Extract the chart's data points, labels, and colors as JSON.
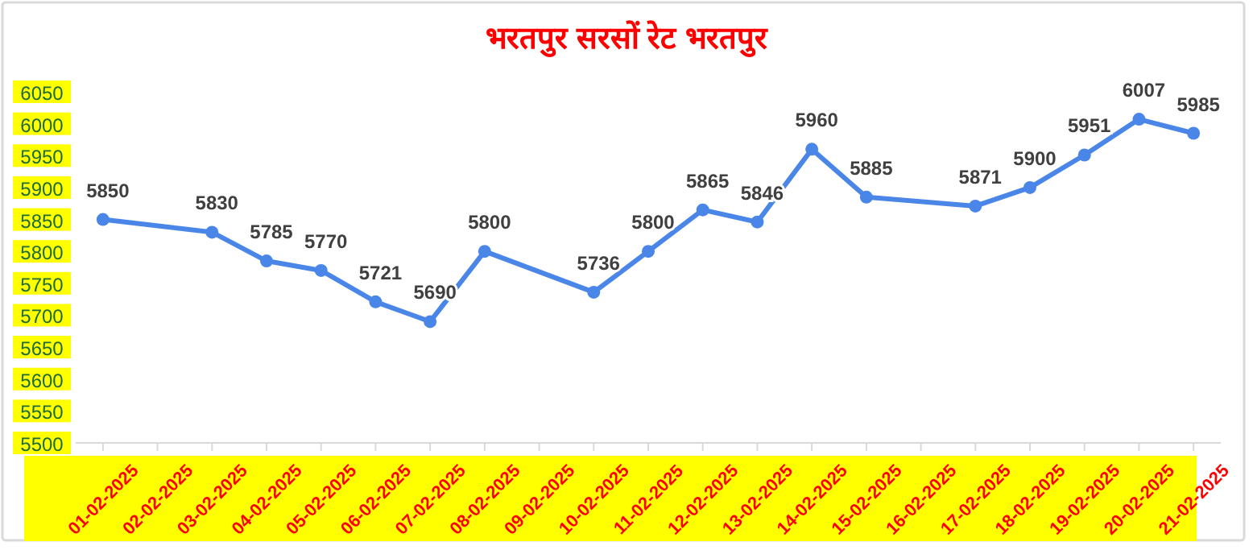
{
  "chart_data": {
    "type": "line",
    "title": "भरतपुर सरसों रेट  भरतपुर",
    "x": [
      "2025-02-01",
      "2025-02-03",
      "2025-02-04",
      "2025-02-05",
      "2025-02-06",
      "2025-02-07",
      "2025-02-08",
      "2025-02-10",
      "2025-02-11",
      "2025-02-12",
      "2025-02-13",
      "2025-02-14",
      "2025-02-15",
      "2025-02-17",
      "2025-02-18",
      "2025-02-19",
      "2025-02-20",
      "2025-02-21"
    ],
    "series": [
      {
        "color": "#4a86e8",
        "values": [
          5850,
          5830,
          5785,
          5770,
          5721,
          5690,
          5800,
          5736,
          5800,
          5865,
          5846,
          5960,
          5885,
          5871,
          5900,
          5951,
          6007,
          5985
        ]
      }
    ],
    "xlim": [
      "2025-01-31T12:00",
      "2025-02-21T12:00"
    ],
    "xticks": [
      {
        "value": "2025-02-01",
        "label": "01-02-2025"
      },
      {
        "value": "2025-02-02",
        "label": "02-02-2025"
      },
      {
        "value": "2025-02-03",
        "label": "03-02-2025"
      },
      {
        "value": "2025-02-04",
        "label": "04-02-2025"
      },
      {
        "value": "2025-02-05",
        "label": "05-02-2025"
      },
      {
        "value": "2025-02-06",
        "label": "06-02-2025"
      },
      {
        "value": "2025-02-07",
        "label": "07-02-2025"
      },
      {
        "value": "2025-02-08",
        "label": "08-02-2025"
      },
      {
        "value": "2025-02-09",
        "label": "09-02-2025"
      },
      {
        "value": "2025-02-10",
        "label": "10-02-2025"
      },
      {
        "value": "2025-02-11",
        "label": "11-02-2025"
      },
      {
        "value": "2025-02-12",
        "label": "12-02-2025"
      },
      {
        "value": "2025-02-13",
        "label": "13-02-2025"
      },
      {
        "value": "2025-02-14",
        "label": "14-02-2025"
      },
      {
        "value": "2025-02-15",
        "label": "15-02-2025"
      },
      {
        "value": "2025-02-16",
        "label": "16-02-2025"
      },
      {
        "value": "2025-02-17",
        "label": "17-02-2025"
      },
      {
        "value": "2025-02-18",
        "label": "18-02-2025"
      },
      {
        "value": "2025-02-19",
        "label": "19-02-2025"
      },
      {
        "value": "2025-02-20",
        "label": "20-02-2025"
      },
      {
        "value": "2025-02-21",
        "label": "21-02-2025"
      }
    ],
    "ylim": [
      5500,
      6050
    ],
    "yticks": [
      5500,
      5550,
      5600,
      5650,
      5700,
      5750,
      5800,
      5850,
      5900,
      5950,
      6000,
      6050
    ],
    "data_labels": true,
    "marker": "circle",
    "line_style": "solid",
    "grid": false
  }
}
